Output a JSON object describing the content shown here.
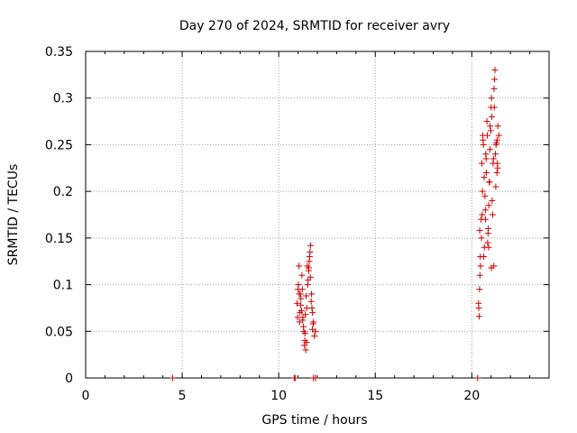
{
  "chart_data": {
    "type": "scatter",
    "title": "Day 270 of 2024, SRMTID for receiver avry",
    "xlabel": "GPS time / hours",
    "ylabel": "SRMTID / TECUs",
    "xlim": [
      0,
      24
    ],
    "ylim": [
      0,
      0.35
    ],
    "grid": true,
    "marker": "+",
    "colors": {
      "points": "#cc0000",
      "grid": "#a0a0a0",
      "axes": "#000000"
    },
    "x_ticks": [
      {
        "value": 0,
        "label": "0"
      },
      {
        "value": 5,
        "label": "5"
      },
      {
        "value": 10,
        "label": "10"
      },
      {
        "value": 15,
        "label": "15"
      },
      {
        "value": 20,
        "label": "20"
      }
    ],
    "y_ticks": [
      {
        "value": 0,
        "label": "0"
      },
      {
        "value": 0.05,
        "label": "0.05"
      },
      {
        "value": 0.1,
        "label": "0.1"
      },
      {
        "value": 0.15,
        "label": "0.15"
      },
      {
        "value": 0.2,
        "label": "0.2"
      },
      {
        "value": 0.25,
        "label": "0.25"
      },
      {
        "value": 0.3,
        "label": "0.3"
      },
      {
        "value": 0.35,
        "label": "0.35"
      }
    ],
    "series": [
      {
        "name": "SRMTID",
        "x": [
          4.5,
          10.8,
          10.85,
          11.8,
          11.9,
          20.3,
          11.0,
          11.05,
          11.1,
          11.15,
          11.2,
          11.25,
          11.3,
          11.35,
          11.4,
          11.45,
          11.5,
          11.55,
          11.6,
          11.65,
          11.7,
          11.75,
          11.8,
          11.85,
          11.9,
          10.95,
          11.02,
          11.08,
          11.12,
          11.18,
          11.22,
          11.28,
          11.33,
          11.38,
          11.42,
          11.48,
          11.52,
          11.58,
          11.62,
          11.68,
          11.72,
          11.78,
          10.98,
          11.06,
          11.14,
          11.24,
          11.36,
          11.44,
          11.56,
          11.64,
          11.74,
          20.35,
          20.4,
          20.45,
          20.5,
          20.55,
          20.6,
          20.65,
          20.7,
          20.75,
          20.8,
          20.85,
          20.9,
          20.95,
          21.0,
          21.05,
          21.1,
          21.15,
          21.2,
          21.25,
          21.3,
          21.35,
          21.4,
          20.38,
          20.42,
          20.48,
          20.52,
          20.58,
          20.62,
          20.68,
          20.72,
          20.78,
          20.82,
          20.88,
          20.92,
          20.98,
          21.02,
          21.08,
          21.12,
          21.18,
          21.22,
          21.28,
          21.32,
          20.36,
          20.44,
          20.54,
          20.64,
          20.74,
          20.84,
          20.94,
          21.04,
          21.14,
          21.24,
          21.34,
          20.41,
          20.57,
          20.71,
          20.87,
          21.01,
          21.16,
          21.31
        ],
        "y": [
          0.0,
          0.0,
          0.0,
          0.0,
          0.0,
          0.0,
          0.095,
          0.12,
          0.07,
          0.085,
          0.11,
          0.065,
          0.05,
          0.04,
          0.03,
          0.075,
          0.1,
          0.115,
          0.13,
          0.142,
          0.09,
          0.07,
          0.06,
          0.045,
          0.05,
          0.08,
          0.1,
          0.06,
          0.09,
          0.072,
          0.095,
          0.055,
          0.035,
          0.068,
          0.088,
          0.12,
          0.105,
          0.125,
          0.135,
          0.082,
          0.075,
          0.058,
          0.065,
          0.09,
          0.078,
          0.062,
          0.048,
          0.038,
          0.118,
          0.108,
          0.052,
          0.08,
          0.095,
          0.12,
          0.15,
          0.2,
          0.25,
          0.14,
          0.18,
          0.22,
          0.26,
          0.16,
          0.21,
          0.27,
          0.29,
          0.19,
          0.23,
          0.31,
          0.33,
          0.25,
          0.22,
          0.27,
          0.26,
          0.066,
          0.11,
          0.17,
          0.23,
          0.255,
          0.13,
          0.195,
          0.24,
          0.275,
          0.145,
          0.185,
          0.21,
          0.265,
          0.3,
          0.175,
          0.235,
          0.32,
          0.24,
          0.252,
          0.23,
          0.075,
          0.13,
          0.175,
          0.215,
          0.235,
          0.155,
          0.245,
          0.28,
          0.12,
          0.205,
          0.225,
          0.158,
          0.26,
          0.17,
          0.14,
          0.118,
          0.29,
          0.255
        ]
      }
    ]
  }
}
